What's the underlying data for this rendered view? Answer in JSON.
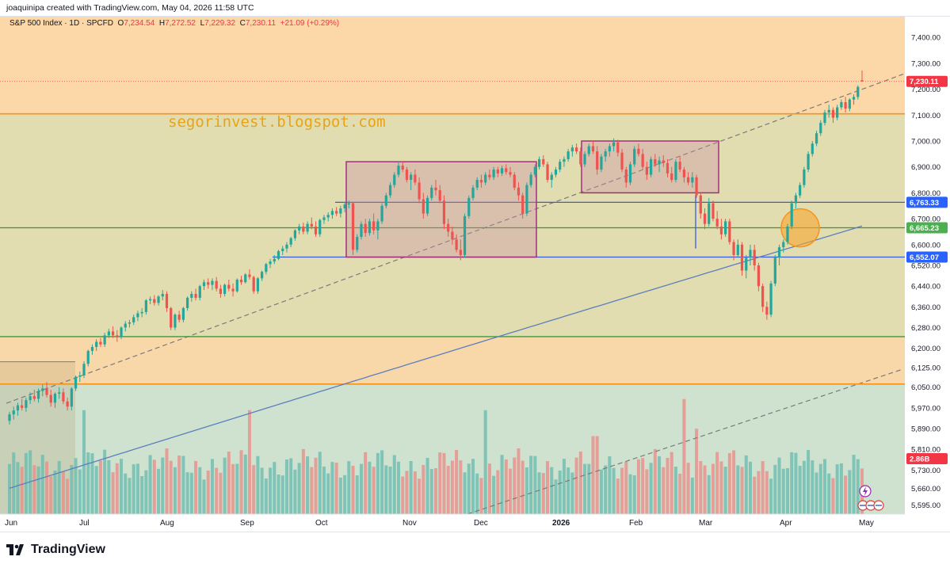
{
  "header": {
    "author": "joaquinipa",
    "created_with": "created with TradingView.com,",
    "date": "May 04, 2026 11:58 UTC"
  },
  "legend": {
    "symbol": "S&P 500 Index · 1D · SPCFD",
    "open_label": "O",
    "open": "7,234.54",
    "high_label": "H",
    "high": "7,272.52",
    "low_label": "L",
    "low": "7,229.32",
    "close_label": "C",
    "close": "7,230.11",
    "change": "+21.09 (+0.29%)"
  },
  "watermark": "segorinvest.blogspot.com",
  "footer": {
    "brand": "TradingView",
    "logo_icon": "tradingview-logo-icon"
  },
  "colors": {
    "up": "#26a69a",
    "down": "#ef5350",
    "ma": "#5b7fbf",
    "orange": "#f7931a",
    "green_line": "#3a9a3a",
    "blue_line": "#3b5bdb",
    "box": "#a0307a",
    "label_red": "#f23645",
    "label_blue": "#2962ff",
    "label_green": "#4caf50"
  },
  "chart_data": {
    "type": "candlestick",
    "symbol": "S&P 500 Index",
    "interval": "1D",
    "ylim": [
      5560,
      7480
    ],
    "y_ticks": [
      "7,400.00",
      "7,300.00",
      "7,200.00",
      "7,100.00",
      "7,000.00",
      "6,900.00",
      "6,800.00",
      "6,700.00",
      "6,600.00",
      "6,520.00",
      "6,440.00",
      "6,360.00",
      "6,280.00",
      "6,200.00",
      "6,125.00",
      "6,050.00",
      "5,970.00",
      "5,890.00",
      "5,810.00",
      "5,730.00",
      "5,660.00",
      "5,595.00"
    ],
    "x_ticks": [
      "Jun",
      "Jul",
      "Aug",
      "Sep",
      "Oct",
      "Nov",
      "Dec",
      "2026",
      "Feb",
      "Mar",
      "Apr",
      "May"
    ],
    "price_labels": [
      {
        "text": "7,230.11",
        "value": 7230.11,
        "style": "red"
      },
      {
        "text": "6,763.33",
        "value": 6763.33,
        "style": "blue"
      },
      {
        "text": "6,665.23",
        "value": 6665.23,
        "style": "green"
      },
      {
        "text": "6,552.07",
        "value": 6552.07,
        "style": "blue"
      },
      {
        "text": "2.86B",
        "value": null,
        "style": "red"
      }
    ],
    "horizontal_levels": [
      {
        "value": 7105,
        "color": "orange"
      },
      {
        "value": 6763.33,
        "color": "blue"
      },
      {
        "value": 6665.23,
        "color": "green"
      },
      {
        "value": 6552.07,
        "color": "blue"
      },
      {
        "value": 6245,
        "color": "green"
      },
      {
        "value": 6062,
        "color": "orange"
      }
    ],
    "zones": [
      {
        "from": 7105,
        "to": 7480,
        "color": "orange"
      },
      {
        "from": 6062,
        "to": 7105,
        "color": "olive"
      },
      {
        "from": 6062,
        "to": 6245,
        "color": "orange"
      },
      {
        "from": 5560,
        "to": 6062,
        "color": "green"
      }
    ],
    "boxes": [
      {
        "start": "Oct 9",
        "end": "Dec 24",
        "low": 6552,
        "high": 6920
      },
      {
        "start": "Jan 8",
        "end": "Feb 26",
        "low": 6800,
        "high": 7000
      }
    ],
    "circle": {
      "date": "Apr 9",
      "value": 6665
    },
    "volume_last": "2.86B",
    "candles": [
      [
        5920,
        5955,
        5905,
        5945
      ],
      [
        5945,
        5975,
        5925,
        5960
      ],
      [
        5960,
        5990,
        5940,
        5980
      ],
      [
        5980,
        6005,
        5960,
        5970
      ],
      [
        5970,
        6010,
        5955,
        6000
      ],
      [
        6000,
        6030,
        5985,
        6015
      ],
      [
        6015,
        6040,
        5995,
        6005
      ],
      [
        6005,
        6045,
        5990,
        6035
      ],
      [
        6035,
        6060,
        6015,
        6045
      ],
      [
        6045,
        6070,
        6010,
        6020
      ],
      [
        6020,
        6040,
        5975,
        5990
      ],
      [
        5990,
        6030,
        5970,
        6025
      ],
      [
        6025,
        6050,
        6005,
        6030
      ],
      [
        6030,
        6045,
        5985,
        5995
      ],
      [
        5995,
        6010,
        5960,
        5975
      ],
      [
        5975,
        6050,
        5960,
        6045
      ],
      [
        6045,
        6095,
        6035,
        6090
      ],
      [
        6090,
        6110,
        6070,
        6095
      ],
      [
        6095,
        6150,
        6085,
        6140
      ],
      [
        6140,
        6195,
        6130,
        6190
      ],
      [
        6190,
        6215,
        6175,
        6205
      ],
      [
        6205,
        6235,
        6190,
        6225
      ],
      [
        6225,
        6240,
        6205,
        6215
      ],
      [
        6215,
        6260,
        6205,
        6250
      ],
      [
        6250,
        6275,
        6240,
        6265
      ],
      [
        6265,
        6285,
        6240,
        6250
      ],
      [
        6250,
        6270,
        6225,
        6245
      ],
      [
        6245,
        6285,
        6235,
        6280
      ],
      [
        6280,
        6305,
        6265,
        6295
      ],
      [
        6295,
        6310,
        6280,
        6300
      ],
      [
        6300,
        6330,
        6290,
        6320
      ],
      [
        6320,
        6345,
        6305,
        6335
      ],
      [
        6335,
        6355,
        6320,
        6340
      ],
      [
        6340,
        6390,
        6330,
        6385
      ],
      [
        6385,
        6400,
        6370,
        6390
      ],
      [
        6390,
        6405,
        6365,
        6375
      ],
      [
        6375,
        6405,
        6365,
        6400
      ],
      [
        6400,
        6425,
        6385,
        6410
      ],
      [
        6410,
        6420,
        6340,
        6355
      ],
      [
        6355,
        6360,
        6270,
        6280
      ],
      [
        6280,
        6335,
        6270,
        6330
      ],
      [
        6330,
        6345,
        6300,
        6310
      ],
      [
        6310,
        6360,
        6300,
        6355
      ],
      [
        6355,
        6400,
        6345,
        6395
      ],
      [
        6395,
        6420,
        6380,
        6410
      ],
      [
        6410,
        6430,
        6385,
        6395
      ],
      [
        6395,
        6445,
        6385,
        6440
      ],
      [
        6440,
        6465,
        6425,
        6455
      ],
      [
        6455,
        6470,
        6430,
        6445
      ],
      [
        6445,
        6470,
        6425,
        6460
      ],
      [
        6460,
        6475,
        6420,
        6430
      ],
      [
        6430,
        6445,
        6395,
        6410
      ],
      [
        6410,
        6450,
        6400,
        6445
      ],
      [
        6445,
        6465,
        6420,
        6430
      ],
      [
        6430,
        6450,
        6400,
        6420
      ],
      [
        6420,
        6470,
        6415,
        6465
      ],
      [
        6465,
        6480,
        6445,
        6455
      ],
      [
        6455,
        6490,
        6450,
        6485
      ],
      [
        6485,
        6505,
        6465,
        6475
      ],
      [
        6475,
        6480,
        6410,
        6420
      ],
      [
        6420,
        6475,
        6410,
        6470
      ],
      [
        6470,
        6500,
        6460,
        6495
      ],
      [
        6495,
        6530,
        6485,
        6525
      ],
      [
        6525,
        6545,
        6510,
        6535
      ],
      [
        6535,
        6560,
        6525,
        6545
      ],
      [
        6545,
        6580,
        6540,
        6575
      ],
      [
        6575,
        6595,
        6560,
        6585
      ],
      [
        6585,
        6610,
        6570,
        6600
      ],
      [
        6600,
        6630,
        6590,
        6625
      ],
      [
        6625,
        6660,
        6615,
        6655
      ],
      [
        6655,
        6680,
        6640,
        6670
      ],
      [
        6670,
        6685,
        6640,
        6650
      ],
      [
        6650,
        6690,
        6640,
        6680
      ],
      [
        6680,
        6705,
        6660,
        6670
      ],
      [
        6670,
        6690,
        6630,
        6640
      ],
      [
        6640,
        6700,
        6630,
        6695
      ],
      [
        6695,
        6715,
        6680,
        6705
      ],
      [
        6705,
        6725,
        6690,
        6715
      ],
      [
        6715,
        6740,
        6700,
        6730
      ],
      [
        6730,
        6745,
        6710,
        6720
      ],
      [
        6720,
        6750,
        6705,
        6740
      ],
      [
        6740,
        6765,
        6725,
        6755
      ],
      [
        6755,
        6770,
        6740,
        6760
      ],
      [
        6760,
        6765,
        6560,
        6580
      ],
      [
        6580,
        6640,
        6570,
        6630
      ],
      [
        6630,
        6690,
        6620,
        6680
      ],
      [
        6680,
        6700,
        6630,
        6645
      ],
      [
        6645,
        6700,
        6635,
        6690
      ],
      [
        6690,
        6720,
        6640,
        6655
      ],
      [
        6655,
        6700,
        6620,
        6690
      ],
      [
        6690,
        6760,
        6680,
        6750
      ],
      [
        6750,
        6800,
        6740,
        6790
      ],
      [
        6790,
        6840,
        6780,
        6830
      ],
      [
        6830,
        6880,
        6820,
        6870
      ],
      [
        6870,
        6920,
        6860,
        6905
      ],
      [
        6905,
        6920,
        6880,
        6890
      ],
      [
        6890,
        6900,
        6840,
        6850
      ],
      [
        6850,
        6880,
        6810,
        6870
      ],
      [
        6870,
        6890,
        6830,
        6840
      ],
      [
        6840,
        6860,
        6760,
        6775
      ],
      [
        6775,
        6800,
        6700,
        6720
      ],
      [
        6720,
        6790,
        6710,
        6780
      ],
      [
        6780,
        6830,
        6770,
        6820
      ],
      [
        6820,
        6850,
        6790,
        6810
      ],
      [
        6810,
        6830,
        6760,
        6770
      ],
      [
        6770,
        6790,
        6660,
        6680
      ],
      [
        6680,
        6700,
        6630,
        6650
      ],
      [
        6650,
        6670,
        6600,
        6620
      ],
      [
        6620,
        6640,
        6570,
        6580
      ],
      [
        6580,
        6620,
        6540,
        6560
      ],
      [
        6560,
        6720,
        6550,
        6710
      ],
      [
        6710,
        6790,
        6700,
        6780
      ],
      [
        6780,
        6830,
        6770,
        6820
      ],
      [
        6820,
        6860,
        6810,
        6850
      ],
      [
        6850,
        6870,
        6820,
        6840
      ],
      [
        6840,
        6880,
        6830,
        6870
      ],
      [
        6870,
        6890,
        6850,
        6860
      ],
      [
        6860,
        6900,
        6850,
        6890
      ],
      [
        6890,
        6900,
        6860,
        6875
      ],
      [
        6875,
        6905,
        6865,
        6895
      ],
      [
        6895,
        6910,
        6870,
        6880
      ],
      [
        6880,
        6900,
        6860,
        6870
      ],
      [
        6870,
        6880,
        6810,
        6820
      ],
      [
        6820,
        6840,
        6770,
        6790
      ],
      [
        6790,
        6800,
        6700,
        6720
      ],
      [
        6720,
        6840,
        6710,
        6830
      ],
      [
        6830,
        6880,
        6820,
        6870
      ],
      [
        6870,
        6910,
        6860,
        6900
      ],
      [
        6900,
        6940,
        6890,
        6930
      ],
      [
        6930,
        6945,
        6900,
        6910
      ],
      [
        6910,
        6920,
        6840,
        6850
      ],
      [
        6850,
        6880,
        6820,
        6870
      ],
      [
        6870,
        6900,
        6860,
        6890
      ],
      [
        6890,
        6930,
        6880,
        6920
      ],
      [
        6920,
        6940,
        6900,
        6930
      ],
      [
        6930,
        6970,
        6920,
        6960
      ],
      [
        6960,
        6985,
        6940,
        6975
      ],
      [
        6975,
        6990,
        6950,
        6960
      ],
      [
        6960,
        6975,
        6900,
        6910
      ],
      [
        6910,
        6960,
        6900,
        6950
      ],
      [
        6950,
        6990,
        6940,
        6980
      ],
      [
        6980,
        7000,
        6950,
        6960
      ],
      [
        6960,
        6980,
        6870,
        6890
      ],
      [
        6890,
        6950,
        6880,
        6940
      ],
      [
        6940,
        6970,
        6920,
        6960
      ],
      [
        6960,
        6990,
        6940,
        6980
      ],
      [
        6980,
        7010,
        6960,
        6995
      ],
      [
        6995,
        7005,
        6940,
        6955
      ],
      [
        6955,
        6970,
        6880,
        6890
      ],
      [
        6890,
        6900,
        6820,
        6840
      ],
      [
        6840,
        6920,
        6830,
        6910
      ],
      [
        6910,
        6980,
        6900,
        6970
      ],
      [
        6970,
        6990,
        6940,
        6950
      ],
      [
        6950,
        6970,
        6890,
        6900
      ],
      [
        6900,
        6920,
        6850,
        6870
      ],
      [
        6870,
        6940,
        6860,
        6930
      ],
      [
        6930,
        6950,
        6900,
        6910
      ],
      [
        6910,
        6940,
        6880,
        6925
      ],
      [
        6925,
        6945,
        6900,
        6915
      ],
      [
        6915,
        6930,
        6860,
        6875
      ],
      [
        6875,
        6900,
        6840,
        6850
      ],
      [
        6850,
        6930,
        6840,
        6920
      ],
      [
        6920,
        6940,
        6880,
        6890
      ],
      [
        6890,
        6900,
        6840,
        6860
      ],
      [
        6860,
        6880,
        6830,
        6840
      ],
      [
        6840,
        6880,
        6820,
        6860
      ],
      [
        6860,
        6870,
        6780,
        6790
      ],
      [
        6790,
        6800,
        6700,
        6720
      ],
      [
        6720,
        6740,
        6660,
        6680
      ],
      [
        6680,
        6780,
        6670,
        6760
      ],
      [
        6760,
        6770,
        6690,
        6700
      ],
      [
        6700,
        6730,
        6660,
        6670
      ],
      [
        6670,
        6700,
        6620,
        6640
      ],
      [
        6640,
        6700,
        6630,
        6690
      ],
      [
        6690,
        6700,
        6600,
        6610
      ],
      [
        6610,
        6620,
        6540,
        6560
      ],
      [
        6560,
        6620,
        6550,
        6600
      ],
      [
        6600,
        6610,
        6480,
        6500
      ],
      [
        6500,
        6560,
        6470,
        6550
      ],
      [
        6550,
        6600,
        6520,
        6580
      ],
      [
        6580,
        6600,
        6500,
        6520
      ],
      [
        6520,
        6530,
        6420,
        6440
      ],
      [
        6440,
        6450,
        6340,
        6360
      ],
      [
        6360,
        6380,
        6310,
        6330
      ],
      [
        6330,
        6460,
        6320,
        6450
      ],
      [
        6450,
        6560,
        6440,
        6550
      ],
      [
        6550,
        6600,
        6520,
        6590
      ],
      [
        6590,
        6620,
        6570,
        6610
      ],
      [
        6610,
        6680,
        6600,
        6670
      ],
      [
        6670,
        6770,
        6660,
        6760
      ],
      [
        6760,
        6800,
        6740,
        6790
      ],
      [
        6790,
        6840,
        6780,
        6830
      ],
      [
        6830,
        6900,
        6820,
        6890
      ],
      [
        6890,
        6960,
        6880,
        6950
      ],
      [
        6950,
        7000,
        6940,
        6990
      ],
      [
        6990,
        7040,
        6980,
        7030
      ],
      [
        7030,
        7080,
        7020,
        7070
      ],
      [
        7070,
        7120,
        7060,
        7110
      ],
      [
        7110,
        7140,
        7090,
        7120
      ],
      [
        7120,
        7130,
        7070,
        7090
      ],
      [
        7090,
        7140,
        7080,
        7130
      ],
      [
        7130,
        7160,
        7120,
        7150
      ],
      [
        7150,
        7170,
        7110,
        7125
      ],
      [
        7125,
        7165,
        7115,
        7160
      ],
      [
        7160,
        7180,
        7140,
        7170
      ],
      [
        7170,
        7215,
        7160,
        7209
      ],
      [
        7234.54,
        7272.52,
        7229.32,
        7230.11
      ]
    ]
  }
}
